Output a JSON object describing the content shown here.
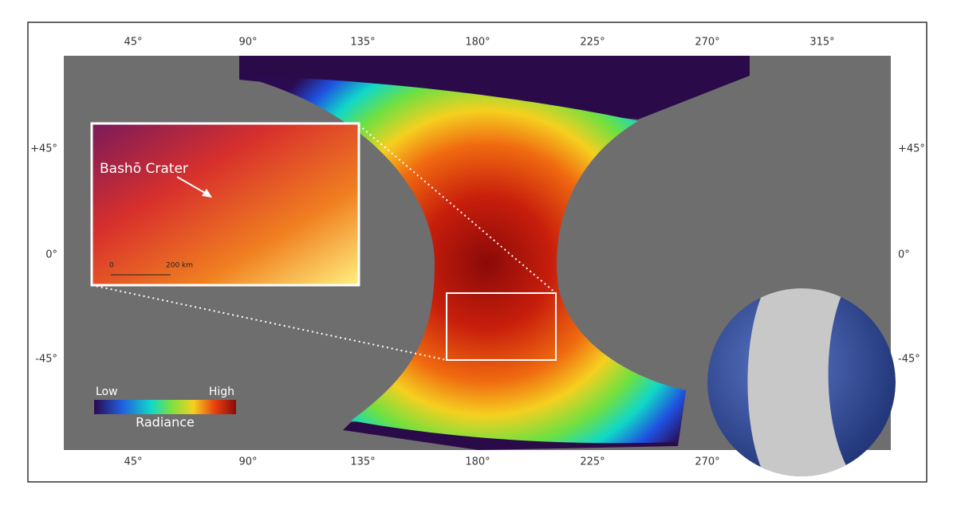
{
  "map": {
    "top_longitudes": [
      "45°",
      "90°",
      "135°",
      "180°",
      "225°",
      "270°",
      "315°"
    ],
    "bottom_longitudes": [
      "45°",
      "90°",
      "135°",
      "180°",
      "225°",
      "270°"
    ],
    "left_latitudes": [
      "+45°",
      "0°",
      "-45°"
    ],
    "right_latitudes": [
      "+45°",
      "0°",
      "-45°"
    ],
    "inset": {
      "label": "Bashō Crater",
      "scale_start": "0",
      "scale_end": "200 km"
    },
    "legend": {
      "low": "Low",
      "high": "High",
      "title": "Radiance"
    }
  }
}
